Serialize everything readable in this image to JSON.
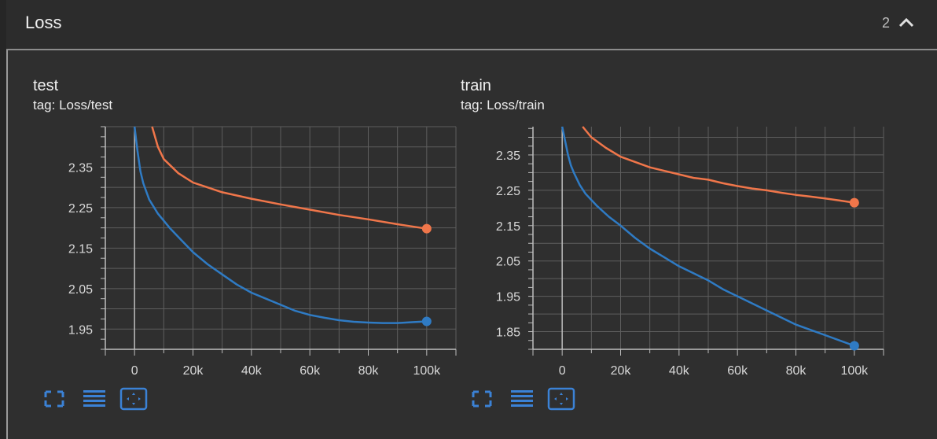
{
  "section": {
    "title": "Loss",
    "count": "2"
  },
  "colors": {
    "orange": "#f0764a",
    "blue": "#2f7bc4",
    "grid": "#5e5e5e",
    "axis": "#bdbdbd",
    "accent": "#3b82d6"
  },
  "icons": {
    "collapse": "chevron-up-icon",
    "fullscreen": "fullscreen-icon",
    "log_scale": "log-scale-icon",
    "fit_domain": "fit-domain-icon"
  },
  "cards": [
    {
      "title": "test",
      "tag": "tag: Loss/test"
    },
    {
      "title": "train",
      "tag": "tag: Loss/train"
    }
  ],
  "chart_data": [
    {
      "type": "line",
      "title": "test",
      "subtitle": "tag: Loss/test",
      "xlabel": "",
      "ylabel": "",
      "xlim": [
        -10000,
        110000
      ],
      "ylim": [
        1.9,
        2.45
      ],
      "xticks": [
        0,
        20000,
        40000,
        60000,
        80000,
        100000
      ],
      "xtick_labels": [
        "0",
        "20k",
        "40k",
        "60k",
        "80k",
        "100k"
      ],
      "yticks": [
        1.95,
        2.05,
        2.15,
        2.25,
        2.35
      ],
      "ytick_labels": [
        "1.95",
        "2.05",
        "2.15",
        "2.25",
        "2.35"
      ],
      "grid": true,
      "series": [
        {
          "color": "#f0764a",
          "x": [
            6000,
            8000,
            10000,
            15000,
            20000,
            30000,
            40000,
            50000,
            60000,
            70000,
            80000,
            90000,
            100000
          ],
          "y": [
            2.45,
            2.4,
            2.37,
            2.335,
            2.312,
            2.288,
            2.272,
            2.258,
            2.245,
            2.232,
            2.221,
            2.209,
            2.198
          ]
        },
        {
          "color": "#2f7bc4",
          "x": [
            0,
            1000,
            2000,
            3000,
            5000,
            8000,
            12000,
            16000,
            20000,
            25000,
            30000,
            35000,
            40000,
            45000,
            50000,
            55000,
            60000,
            65000,
            70000,
            75000,
            80000,
            85000,
            90000,
            95000,
            100000
          ],
          "y": [
            2.45,
            2.39,
            2.34,
            2.31,
            2.27,
            2.235,
            2.2,
            2.17,
            2.14,
            2.11,
            2.085,
            2.06,
            2.04,
            2.025,
            2.01,
            1.995,
            1.985,
            1.978,
            1.972,
            1.968,
            1.966,
            1.965,
            1.965,
            1.967,
            1.969
          ]
        }
      ]
    },
    {
      "type": "line",
      "title": "train",
      "subtitle": "tag: Loss/train",
      "xlabel": "",
      "ylabel": "",
      "xlim": [
        -10000,
        110000
      ],
      "ylim": [
        1.8,
        2.43
      ],
      "xticks": [
        0,
        20000,
        40000,
        60000,
        80000,
        100000
      ],
      "xtick_labels": [
        "0",
        "20k",
        "40k",
        "60k",
        "80k",
        "100k"
      ],
      "yticks": [
        1.85,
        1.95,
        2.05,
        2.15,
        2.25,
        2.35
      ],
      "ytick_labels": [
        "1.85",
        "1.95",
        "2.05",
        "2.15",
        "2.25",
        "2.35"
      ],
      "grid": true,
      "series": [
        {
          "color": "#f0764a",
          "x": [
            7000,
            10000,
            15000,
            20000,
            25000,
            30000,
            35000,
            40000,
            45000,
            50000,
            55000,
            60000,
            65000,
            70000,
            75000,
            80000,
            85000,
            90000,
            95000,
            100000
          ],
          "y": [
            2.43,
            2.4,
            2.37,
            2.345,
            2.33,
            2.315,
            2.305,
            2.295,
            2.285,
            2.28,
            2.27,
            2.262,
            2.255,
            2.25,
            2.243,
            2.237,
            2.232,
            2.227,
            2.221,
            2.215
          ]
        },
        {
          "color": "#2f7bc4",
          "x": [
            0,
            1000,
            2000,
            3000,
            4000,
            6000,
            8000,
            12000,
            16000,
            20000,
            25000,
            30000,
            35000,
            40000,
            45000,
            50000,
            55000,
            60000,
            65000,
            70000,
            75000,
            80000,
            85000,
            90000,
            95000,
            100000
          ],
          "y": [
            2.43,
            2.39,
            2.35,
            2.32,
            2.3,
            2.265,
            2.24,
            2.205,
            2.175,
            2.15,
            2.115,
            2.085,
            2.06,
            2.035,
            2.015,
            1.995,
            1.97,
            1.95,
            1.93,
            1.91,
            1.89,
            1.87,
            1.855,
            1.84,
            1.825,
            1.81
          ]
        }
      ]
    }
  ]
}
